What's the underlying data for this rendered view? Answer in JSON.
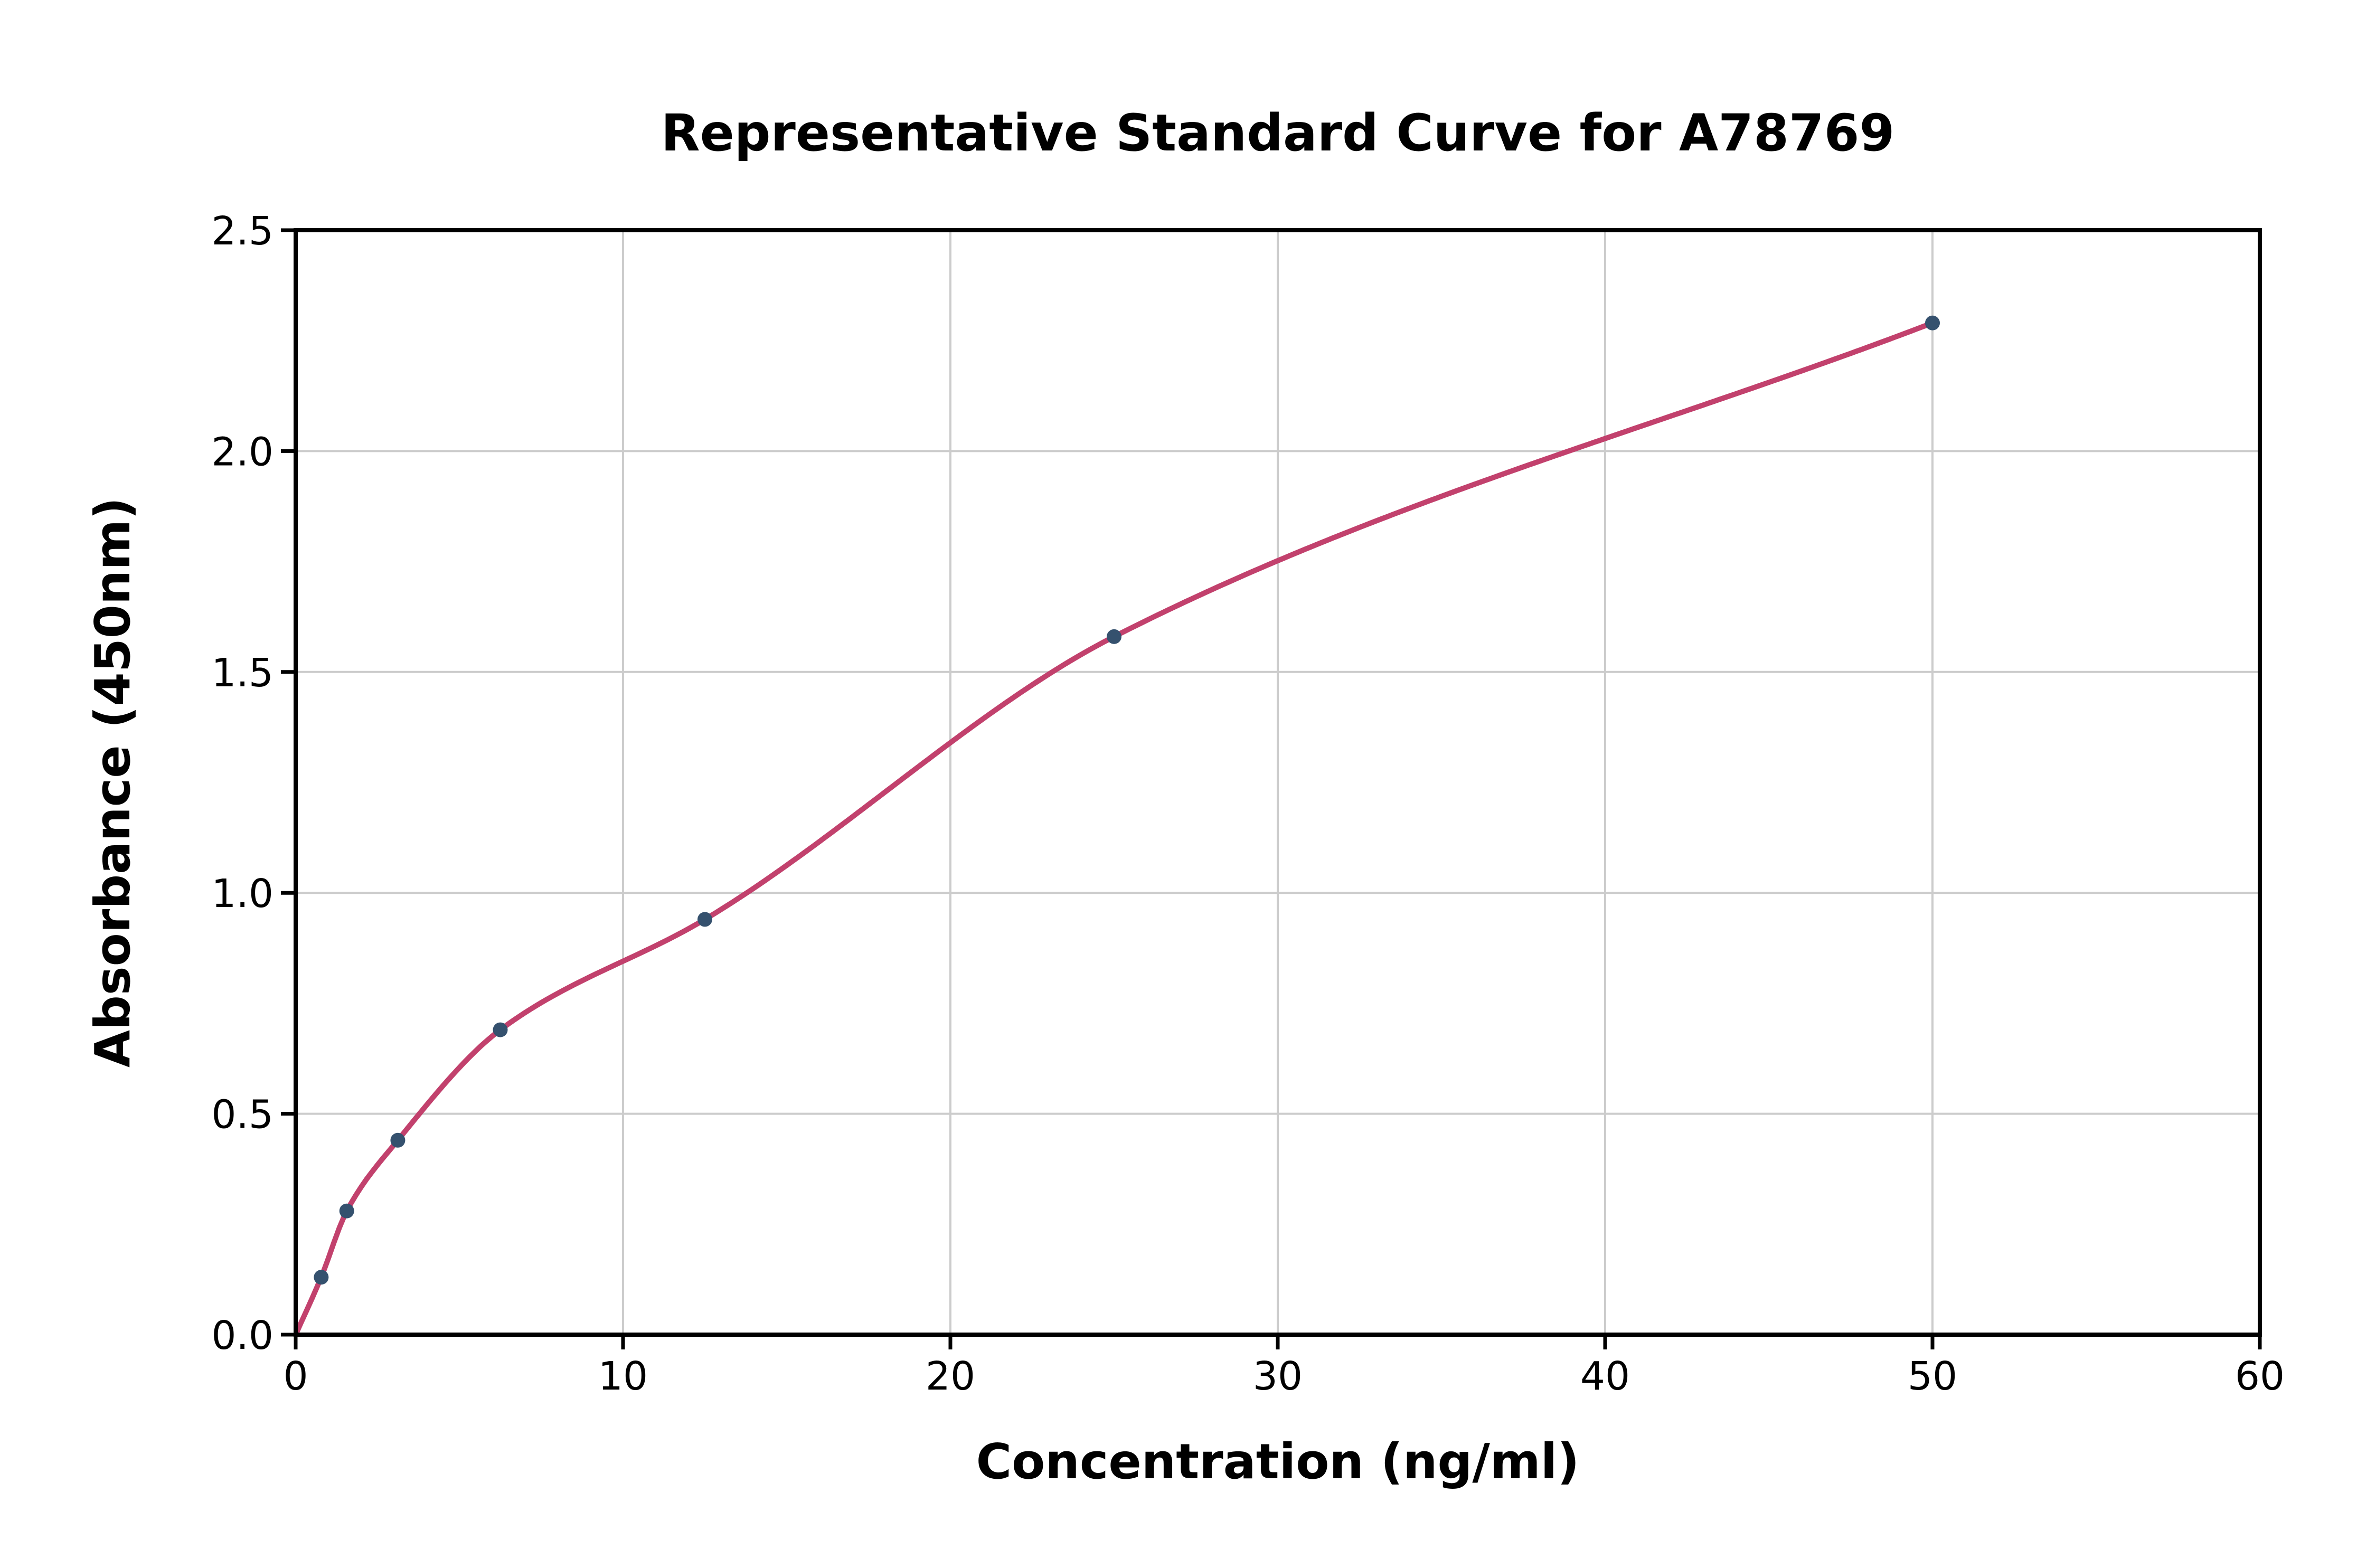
{
  "page": {
    "background_color": "#ffffff"
  },
  "chart_data": {
    "type": "scatter",
    "title": "Representative Standard Curve for A78769",
    "xlabel": "Concentration (ng/ml)",
    "ylabel": "Absorbance (450nm)",
    "xlim": [
      0,
      60
    ],
    "ylim": [
      0,
      2.5
    ],
    "xticks": [
      0,
      10,
      20,
      30,
      40,
      50,
      60
    ],
    "yticks": [
      0,
      0.5,
      1.0,
      1.5,
      2.0,
      2.5
    ],
    "xtick_labels": [
      "0",
      "10",
      "20",
      "30",
      "40",
      "50",
      "60"
    ],
    "ytick_labels": [
      "0.0",
      "0.5",
      "1.0",
      "1.5",
      "2.0",
      "2.5"
    ],
    "grid": true,
    "legend": "none",
    "points": [
      {
        "x": 0.78,
        "y": 0.13
      },
      {
        "x": 1.56,
        "y": 0.28
      },
      {
        "x": 3.12,
        "y": 0.44
      },
      {
        "x": 6.25,
        "y": 0.69
      },
      {
        "x": 12.5,
        "y": 0.94
      },
      {
        "x": 25,
        "y": 1.58
      },
      {
        "x": 50,
        "y": 2.29
      }
    ],
    "fit_curve": {
      "style": "smooth-through-points",
      "start": {
        "x": 0,
        "y": 0
      },
      "end": {
        "x": 50,
        "y": 2.29
      }
    },
    "colors": {
      "point": "#35516e",
      "curve": "#c2416d",
      "grid": "#cccccc",
      "frame": "#000000",
      "background": "#ffffff"
    }
  }
}
